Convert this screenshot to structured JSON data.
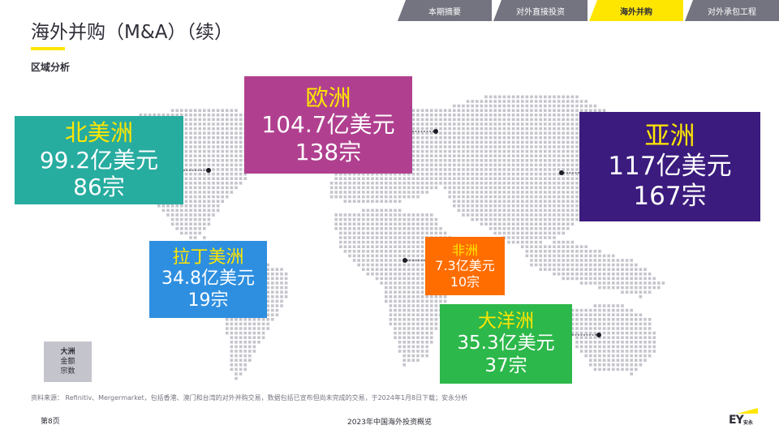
{
  "tabs": [
    {
      "label": "本期摘要",
      "active": false
    },
    {
      "label": "对外直接投资",
      "active": false
    },
    {
      "label": "海外并购",
      "active": true
    },
    {
      "label": "对外承包工程",
      "active": false
    }
  ],
  "page_title": "海外并购（M&A）（续）",
  "section_title": "区域分析",
  "regions": {
    "north_america": {
      "name": "北美洲",
      "amount": "99.2亿美元",
      "deals": "86宗",
      "color": "#27aca0"
    },
    "europe": {
      "name": "欧洲",
      "amount": "104.7亿美元",
      "deals": "138宗",
      "color": "#b0408f"
    },
    "asia": {
      "name": "亚洲",
      "amount": "117亿美元",
      "deals": "167宗",
      "color": "#3b1b7e"
    },
    "latin_america": {
      "name": "拉丁美洲",
      "amount": "34.8亿美元",
      "deals": "19宗",
      "color": "#2e8fe0"
    },
    "africa": {
      "name": "非洲",
      "amount": "7.3亿美元",
      "deals": "10宗",
      "color": "#ff6d00"
    },
    "oceania": {
      "name": "大洋洲",
      "amount": "35.3亿美元",
      "deals": "37宗",
      "color": "#2db84b"
    }
  },
  "legend": {
    "line1": "大洲",
    "line2": "金额",
    "line3": "宗数"
  },
  "source_note": "资料来源： Refinitiv、Mergermarket，包括香港、澳门和台湾的对外并购交易，数据包括已宣布但尚未完成的交易，于2024年1月8日下载；安永分析",
  "page_number": "第8页",
  "footer_title": "2023年中国海外投资概览",
  "logo": {
    "mark": "EY",
    "cn": "安永"
  },
  "colors": {
    "accent": "#ffe600",
    "tab_bg": "#747480",
    "map_dot": "#c4c4cd",
    "text": "#2e2e38"
  }
}
